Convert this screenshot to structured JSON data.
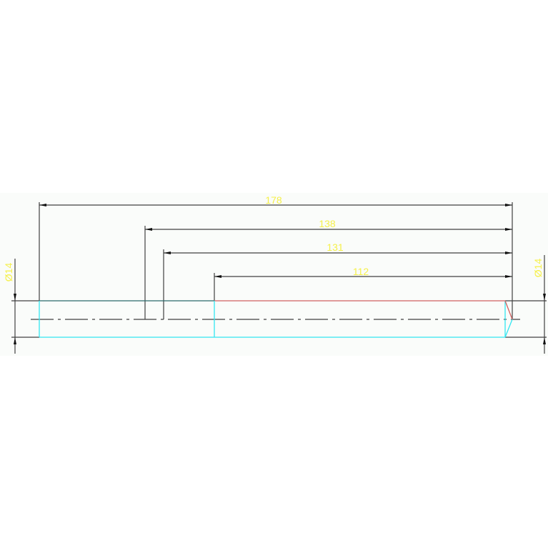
{
  "colors": {
    "background": "#ffffff",
    "drawing_area": "#fafcfa",
    "dimension_line": "#404040",
    "outline_cyan": "#33e6f0",
    "outline_teal": "#2a6a6a",
    "outline_red": "#d06060",
    "dimension_text": "#f5f04a"
  },
  "dimensions": {
    "overall_length": "178",
    "length_138": "138",
    "length_131": "131",
    "length_112": "112",
    "diameter_left": "Ø14",
    "diameter_right": "Ø14"
  }
}
